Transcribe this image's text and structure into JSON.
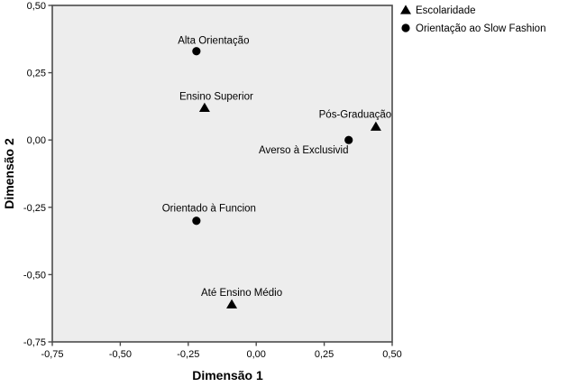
{
  "chart_data": {
    "type": "scatter",
    "title": "",
    "xlabel": "Dimensão 1",
    "ylabel": "Dimensão 2",
    "xlim": [
      -0.75,
      0.5
    ],
    "ylim": [
      -0.75,
      0.5
    ],
    "grid": false,
    "legend_position": "top-right-outside",
    "xticks": [
      {
        "v": -0.75,
        "label": "-0,75"
      },
      {
        "v": -0.5,
        "label": "-0,50"
      },
      {
        "v": -0.25,
        "label": "-0,25"
      },
      {
        "v": 0.0,
        "label": "0,00"
      },
      {
        "v": 0.25,
        "label": "0,25"
      },
      {
        "v": 0.5,
        "label": "0,50"
      }
    ],
    "yticks": [
      {
        "v": 0.5,
        "label": "0,50"
      },
      {
        "v": 0.25,
        "label": "0,25"
      },
      {
        "v": 0.0,
        "label": "0,00"
      },
      {
        "v": -0.25,
        "label": "-0,25"
      },
      {
        "v": -0.5,
        "label": "-0,50"
      },
      {
        "v": -0.75,
        "label": "-0,75"
      }
    ],
    "series": [
      {
        "name": "Escolaridade",
        "marker": "triangle",
        "color": "#000000",
        "points": [
          {
            "label": "Ensino Superior",
            "x": -0.19,
            "y": 0.12,
            "label_dx": 13,
            "label_dy": -9
          },
          {
            "label": "Pós-Graduação",
            "x": 0.44,
            "y": 0.05,
            "label_dx": -23,
            "label_dy": -10
          },
          {
            "label": "Até Ensino Médio",
            "x": -0.09,
            "y": -0.61,
            "label_dx": 11,
            "label_dy": -9
          }
        ]
      },
      {
        "name": "Orientação ao Slow Fashion",
        "marker": "circle",
        "color": "#000000",
        "points": [
          {
            "label": "Alta Orientação",
            "x": -0.22,
            "y": 0.33,
            "label_dx": 19,
            "label_dy": -8
          },
          {
            "label": "Averso à Exclusivid",
            "x": 0.34,
            "y": 0.0,
            "label_dx": -50,
            "label_dy": 15
          },
          {
            "label": "Orientado à Funcion",
            "x": -0.22,
            "y": -0.3,
            "label_dx": 14,
            "label_dy": -10
          }
        ]
      }
    ]
  },
  "colors": {
    "page_bg": "#ffffff",
    "plot_bg": "#ededed",
    "frame": "#4b4b4b",
    "marker": "#000000",
    "text": "#000000"
  }
}
